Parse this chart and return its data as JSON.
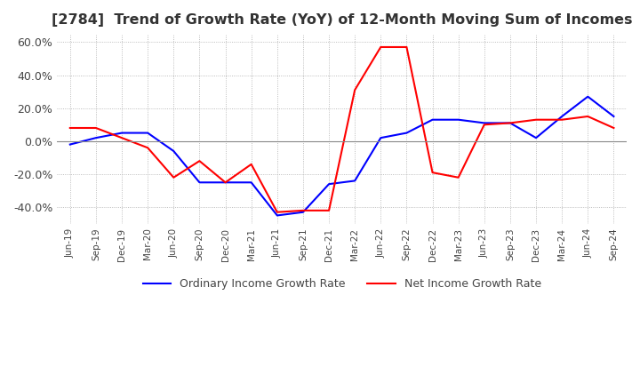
{
  "title": "[2784]  Trend of Growth Rate (YoY) of 12-Month Moving Sum of Incomes",
  "title_fontsize": 11.5,
  "ylim": [
    -50,
    65
  ],
  "yticks": [
    -40,
    -20,
    0,
    20,
    40,
    60
  ],
  "background_color": "#ffffff",
  "grid_color": "#aaaaaa",
  "ordinary_color": "#0000ff",
  "net_color": "#ff0000",
  "legend_ordinary": "Ordinary Income Growth Rate",
  "legend_net": "Net Income Growth Rate",
  "x_labels": [
    "Jun-19",
    "Sep-19",
    "Dec-19",
    "Mar-20",
    "Jun-20",
    "Sep-20",
    "Dec-20",
    "Mar-21",
    "Jun-21",
    "Sep-21",
    "Dec-21",
    "Mar-22",
    "Jun-22",
    "Sep-22",
    "Dec-22",
    "Mar-23",
    "Jun-23",
    "Sep-23",
    "Dec-23",
    "Mar-24",
    "Jun-24",
    "Sep-24"
  ],
  "ordinary_income_growth": [
    -2.0,
    2.0,
    5.0,
    5.0,
    -6.0,
    -25.0,
    -25.0,
    -25.0,
    -45.0,
    -43.0,
    -26.0,
    -24.0,
    2.0,
    5.0,
    13.0,
    13.0,
    11.0,
    11.0,
    2.0,
    15.0,
    27.0,
    15.0
  ],
  "net_income_growth": [
    8.0,
    8.0,
    2.0,
    -4.0,
    -22.0,
    -12.0,
    -25.0,
    -14.0,
    -43.0,
    -42.0,
    -42.0,
    31.0,
    57.0,
    57.0,
    -19.0,
    -22.0,
    10.0,
    11.0,
    13.0,
    13.0,
    15.0,
    8.0
  ]
}
